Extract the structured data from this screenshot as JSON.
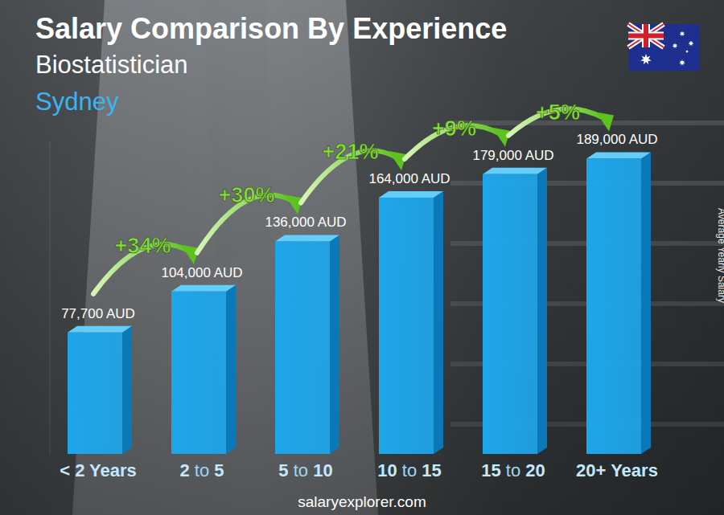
{
  "chart_data": {
    "type": "bar",
    "title": "Salary Comparison By Experience",
    "subtitle": "Biostatistician",
    "location": "Sydney",
    "ylabel": "Average Yearly Salary",
    "source": "salaryexplorer.com",
    "categories": [
      "< 2 Years",
      "2 to 5",
      "5 to 10",
      "10 to 15",
      "15 to 20",
      "20+ Years"
    ],
    "values": [
      77700,
      104000,
      136000,
      164000,
      179000,
      189000
    ],
    "value_labels": [
      "77,700 AUD",
      "104,000 AUD",
      "136,000 AUD",
      "164,000 AUD",
      "179,000 AUD",
      "189,000 AUD"
    ],
    "annotations": [
      "+34%",
      "+30%",
      "+21%",
      "+9%",
      "+5%"
    ],
    "color": "#1ea6ea",
    "ylim": [
      0,
      200000
    ],
    "data_labels": true,
    "tick_labels": false,
    "grid": false
  }
}
